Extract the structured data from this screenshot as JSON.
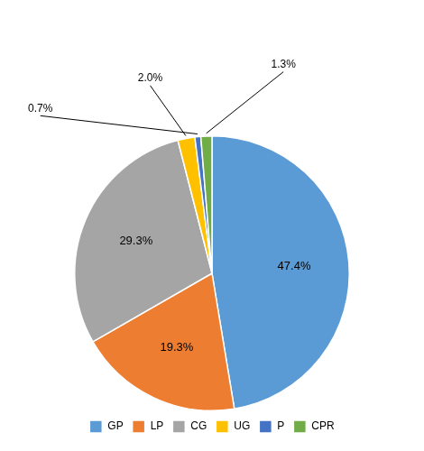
{
  "chart_data": {
    "type": "pie",
    "categories": [
      "GP",
      "LP",
      "CG",
      "UG",
      "P",
      "CPR"
    ],
    "values": [
      47.4,
      19.3,
      29.3,
      2.0,
      0.7,
      1.3
    ],
    "value_labels": [
      "47.4%",
      "19.3%",
      "29.3%",
      "2.0%",
      "0.7%",
      "1.3%"
    ],
    "colors": [
      "#5B9BD5",
      "#ED7D31",
      "#A5A5A5",
      "#FFC000",
      "#4472C4",
      "#70AD47"
    ],
    "data_labels": true,
    "legend": "bottom"
  }
}
